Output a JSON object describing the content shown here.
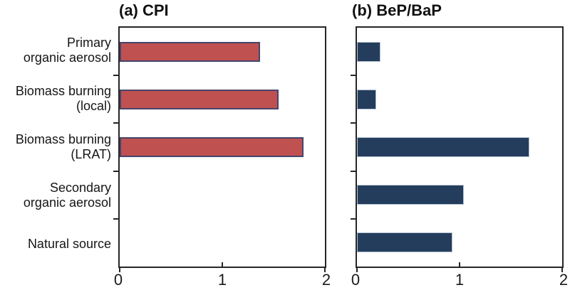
{
  "figure": {
    "background": "#ffffff",
    "text_color": "#111111",
    "frame_color": "#262626",
    "row_labels": [
      [
        "Primary",
        "organic aerosol"
      ],
      [
        "Biomass burning",
        "(local)"
      ],
      [
        "Biomass burning",
        "(LRAT)"
      ],
      [
        "Secondary",
        "organic aerosol"
      ],
      [
        "Natural source"
      ]
    ]
  },
  "chart_data": [
    {
      "type": "bar",
      "orientation": "horizontal",
      "title": "(a) CPI",
      "categories": [
        "Primary organic aerosol",
        "Biomass burning (local)",
        "Biomass burning (LRAT)",
        "Secondary organic aerosol",
        "Natural source"
      ],
      "values": [
        1.37,
        1.55,
        1.79,
        null,
        null
      ],
      "xlim": [
        0,
        2
      ],
      "xticks": [
        0,
        1,
        2
      ],
      "bar_color": "#bf5151",
      "bar_border_color": "#45466b",
      "grid": false,
      "legend": false
    },
    {
      "type": "bar",
      "orientation": "horizontal",
      "title": "(b) BeP/BaP",
      "categories": [
        "Primary organic aerosol",
        "Biomass burning (local)",
        "Biomass burning (LRAT)",
        "Secondary organic aerosol",
        "Natural source"
      ],
      "values": [
        0.23,
        0.19,
        1.68,
        1.04,
        0.93
      ],
      "xlim": [
        0,
        2
      ],
      "xticks": [
        0,
        1,
        2
      ],
      "bar_color": "#253d5c",
      "bar_border_color": "#b3c3d4",
      "grid": false,
      "legend": false
    }
  ]
}
